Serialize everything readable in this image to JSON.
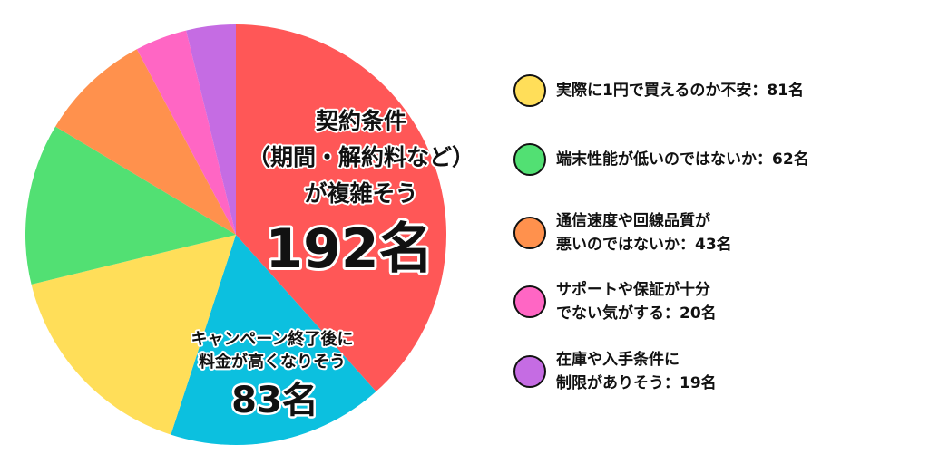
{
  "chart_data": {
    "type": "pie",
    "start": "top",
    "direction": "clockwise",
    "unit": "名",
    "slices": [
      {
        "label": "契約条件（期間・解約料など）が複雑そう",
        "value": 192,
        "color": "#FF5757",
        "inner_label": [
          "契約条件",
          "（期間・解約料など）",
          "が複雑そう"
        ],
        "inner_value": "192名"
      },
      {
        "label": "キャンペーン終了後に料金が高くなりそう",
        "value": 83,
        "color": "#0CC0DF",
        "inner_label": [
          "キャンペーン終了後に",
          "料金が高くなりそう"
        ],
        "inner_value": "83名"
      },
      {
        "label": "実際に1円で買えるのか不安",
        "value": 81,
        "color": "#FFDE59"
      },
      {
        "label": "端末性能が低いのではないか",
        "value": 62,
        "color": "#52E073"
      },
      {
        "label": "通信速度や回線品質が悪いのではないか",
        "value": 43,
        "color": "#FF914D"
      },
      {
        "label": "サポートや保証が十分でない気がする",
        "value": 20,
        "color": "#FF66C4"
      },
      {
        "label": "在庫や入手条件に制限がありそう",
        "value": 19,
        "color": "#C56CE3"
      }
    ],
    "legend": {
      "placement": "right",
      "entries": [
        {
          "text": "実際に1円で買えるのか不安：81名",
          "color": "#FFDE59"
        },
        {
          "text": "端末性能が低いのではないか：62名",
          "color": "#52E073"
        },
        {
          "text": "通信速度や回線品質が\n悪いのではないか：43名",
          "color": "#FF914D"
        },
        {
          "text": "サポートや保証が十分\nでない気がする：20名",
          "color": "#FF66C4"
        },
        {
          "text": "在庫や入手条件に\n制限がありそう：19名",
          "color": "#C56CE3"
        }
      ]
    }
  }
}
